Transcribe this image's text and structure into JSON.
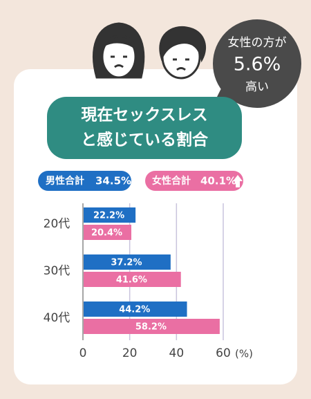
{
  "chart_data": {
    "type": "bar",
    "orientation": "horizontal",
    "title_lines": [
      "現在セックスレス",
      "と感じている割合"
    ],
    "annotation_lines": [
      "女性の方が",
      "5.6%",
      "高い"
    ],
    "categories": [
      "20代",
      "30代",
      "40代"
    ],
    "series": [
      {
        "name": "男性合計",
        "total_label": "34.5%",
        "color": "#1f6fc4",
        "values": [
          22.2,
          37.2,
          44.2
        ],
        "value_labels": [
          "22.2%",
          "37.2%",
          "44.2%"
        ]
      },
      {
        "name": "女性合計",
        "total_label": "40.1%",
        "color": "#ea6fa3",
        "values": [
          20.4,
          41.6,
          58.2
        ],
        "value_labels": [
          "20.4%",
          "41.6%",
          "58.2%"
        ]
      }
    ],
    "xlim": [
      0,
      60
    ],
    "xticks": [
      0,
      20,
      40,
      60
    ],
    "x_unit": "(%)",
    "grid": true
  }
}
